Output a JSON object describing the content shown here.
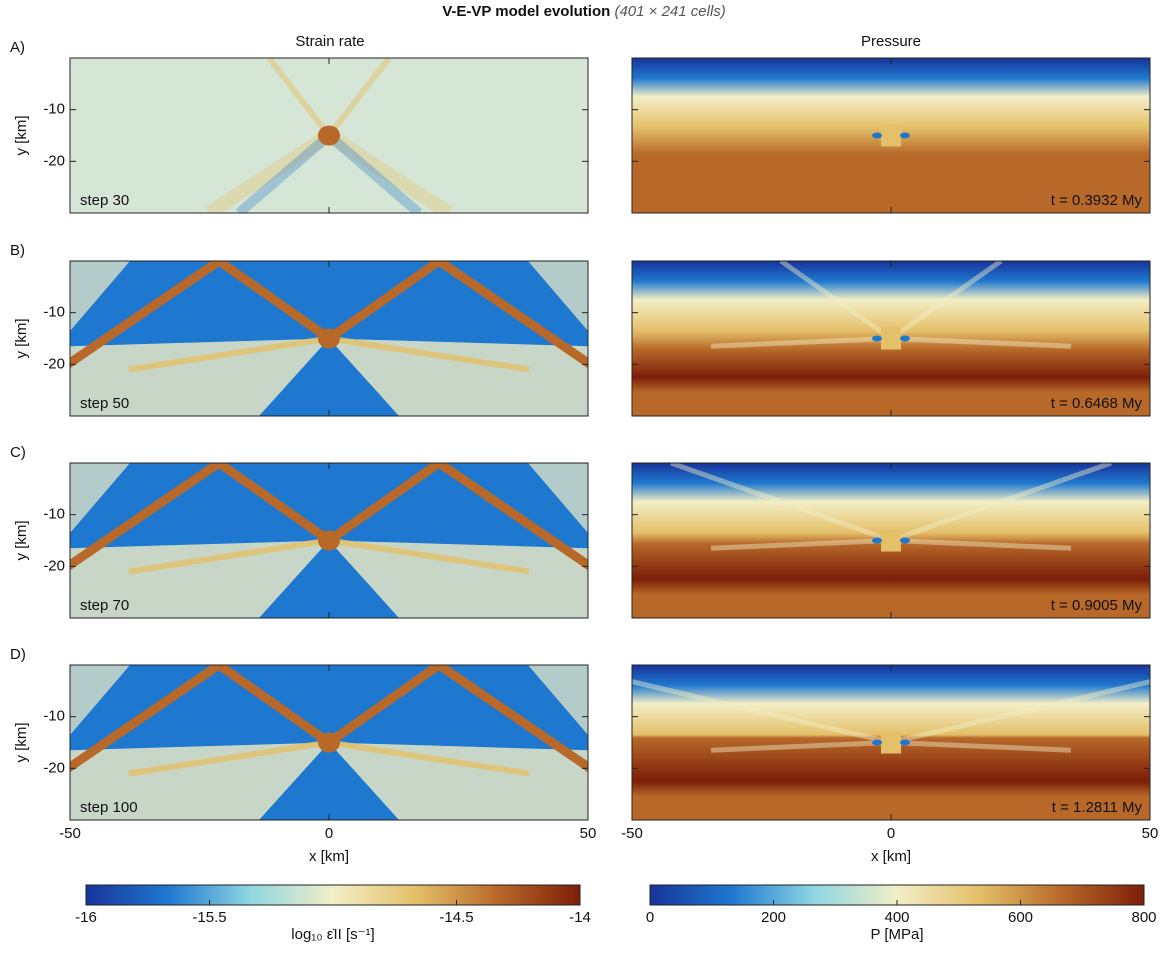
{
  "chart_data": {
    "type": "heatmap",
    "title": "V-E-VP model evolution",
    "subtitle": "(401 × 241 cells)",
    "columns": [
      "Strain rate",
      "Pressure"
    ],
    "rows": [
      {
        "label": "A)",
        "step": "step 30",
        "time": "t = 0.3932 My"
      },
      {
        "label": "B)",
        "step": "step 50",
        "time": "t = 0.6468 My"
      },
      {
        "label": "C)",
        "step": "step 70",
        "time": "t = 0.9005 My"
      },
      {
        "label": "D)",
        "step": "step 100",
        "time": "t = 1.2811 My"
      }
    ],
    "xlabel": "x [km]",
    "ylabel": "y [km]",
    "xlim": [
      -50,
      50
    ],
    "xticks": [
      -50,
      0,
      50
    ],
    "ylim": [
      -30,
      0
    ],
    "yticks": [
      -10,
      -20
    ],
    "colormap": [
      "#17349a",
      "#1f78cf",
      "#8fd7e2",
      "#f2eec6",
      "#e4c069",
      "#b8692a",
      "#7c1e08"
    ],
    "colorbars": [
      {
        "label": "log₁₀ ε̇II [s⁻¹]",
        "lim": [
          -16,
          -14
        ],
        "ticks": [
          -16,
          -15.5,
          -14.5,
          -14
        ]
      },
      {
        "label": "P [MPa]",
        "lim": [
          0,
          800
        ],
        "ticks": [
          0,
          200,
          400,
          600,
          800
        ]
      }
    ]
  }
}
